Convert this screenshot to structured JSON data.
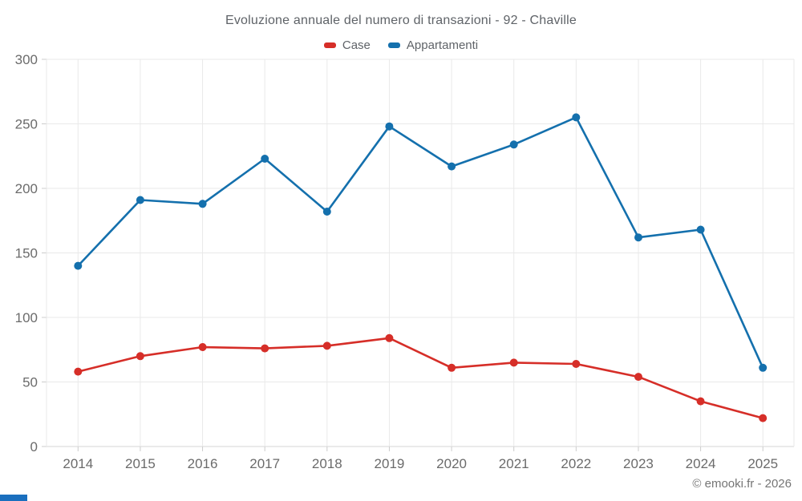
{
  "title": "Evoluzione annuale del numero di transazioni - 92 - Chaville",
  "footer": "© emooki.fr - 2026",
  "legend": [
    {
      "label": "Case",
      "color": "#d62e28"
    },
    {
      "label": "Appartamenti",
      "color": "#1470ad"
    }
  ],
  "colors": {
    "grid": "#e9e9e9",
    "axis_line": "#d6d6d6",
    "tick": "#cccccc",
    "tick_label": "#6b6b6b",
    "title_text": "#5f6368",
    "footer_text": "#757575",
    "background": "#ffffff",
    "case_red": "#d62e28",
    "appartamenti_blue": "#1470ad"
  },
  "chart_data": {
    "type": "line",
    "title": "Evoluzione annuale del numero di transazioni - 92 - Chaville",
    "categories": [
      "2014",
      "2015",
      "2016",
      "2017",
      "2018",
      "2019",
      "2020",
      "2021",
      "2022",
      "2023",
      "2024",
      "2025"
    ],
    "series": [
      {
        "name": "Case",
        "color": "#d62e28",
        "values": [
          58,
          70,
          77,
          76,
          78,
          84,
          61,
          65,
          64,
          54,
          35,
          22
        ]
      },
      {
        "name": "Appartamenti",
        "color": "#1470ad",
        "values": [
          140,
          191,
          188,
          223,
          182,
          248,
          217,
          234,
          255,
          162,
          168,
          61
        ]
      }
    ],
    "xlabel": "",
    "ylabel": "",
    "ylim": [
      0,
      300
    ],
    "yticks": [
      0,
      50,
      100,
      150,
      200,
      250,
      300
    ],
    "grid": true,
    "legend_position": "top",
    "marker": "circle"
  }
}
